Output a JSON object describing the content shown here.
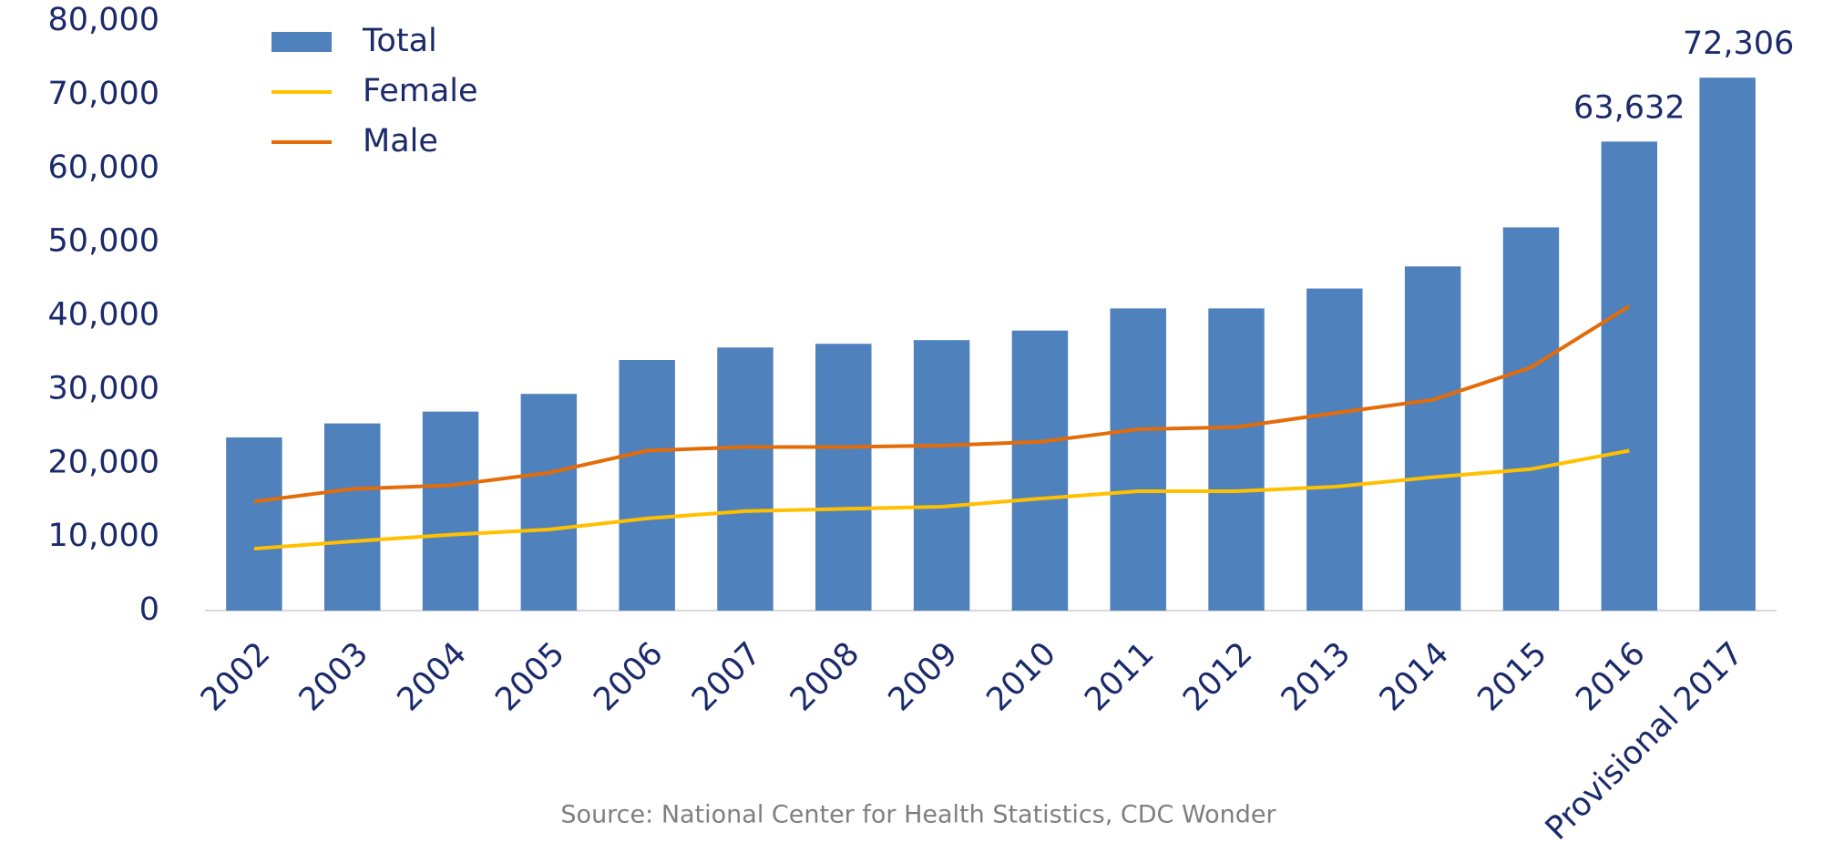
{
  "chart_data": {
    "type": "bar",
    "categories": [
      "2002",
      "2003",
      "2004",
      "2005",
      "2006",
      "2007",
      "2008",
      "2009",
      "2010",
      "2011",
      "2012",
      "2013",
      "2014",
      "2015",
      "2016",
      "Provisional 2017"
    ],
    "series": [
      {
        "name": "Total",
        "type": "bar",
        "color": "#4f81bd",
        "values": [
          23500,
          25400,
          27000,
          29400,
          34000,
          35700,
          36200,
          36700,
          38000,
          41000,
          41000,
          43700,
          46700,
          52000,
          63632,
          72306
        ],
        "value_labels": [
          null,
          null,
          null,
          null,
          null,
          null,
          null,
          null,
          null,
          null,
          null,
          null,
          null,
          null,
          "63,632",
          "72,306"
        ]
      },
      {
        "name": "Female",
        "type": "line",
        "color": "#ffc000",
        "values": [
          8400,
          9400,
          10300,
          11000,
          12500,
          13500,
          13800,
          14100,
          15200,
          16200,
          16200,
          16800,
          18100,
          19200,
          21700,
          null
        ]
      },
      {
        "name": "Male",
        "type": "line",
        "color": "#e36c09",
        "values": [
          14800,
          16500,
          17000,
          18700,
          21700,
          22200,
          22200,
          22400,
          22900,
          24600,
          24900,
          26800,
          28600,
          33000,
          41300,
          null
        ]
      }
    ],
    "ylim": [
      0,
      80000
    ],
    "yticks": [
      0,
      {
        "value": 10000,
        "label": "10,000"
      },
      {
        "value": 20000,
        "label": "20,000"
      },
      {
        "value": 30000,
        "label": "30,000"
      },
      {
        "value": 40000,
        "label": "40,000"
      },
      {
        "value": 50000,
        "label": "50,000"
      },
      {
        "value": 60000,
        "label": "60,000"
      },
      {
        "value": 70000,
        "label": "70,000"
      },
      {
        "value": 80000,
        "label": "80,000"
      }
    ],
    "legend": "upper left",
    "source": "Source: National Center for Health Statistics, CDC Wonder"
  }
}
